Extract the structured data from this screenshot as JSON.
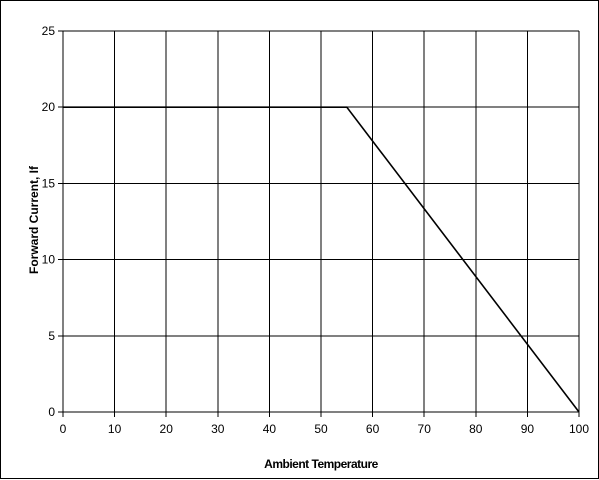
{
  "chart_data": {
    "type": "line",
    "title": "",
    "xlabel": "Ambient Temperature",
    "ylabel": "Forward Current, If",
    "xlim": [
      0,
      100
    ],
    "ylim": [
      0,
      25
    ],
    "x_ticks": [
      0,
      10,
      20,
      30,
      40,
      50,
      60,
      70,
      80,
      90,
      100
    ],
    "y_ticks": [
      0,
      5,
      10,
      15,
      20,
      25
    ],
    "grid": true,
    "legend": "none",
    "series": [
      {
        "x": [
          0,
          55,
          100
        ],
        "y": [
          20,
          20,
          0
        ],
        "color": "#000000"
      }
    ]
  }
}
